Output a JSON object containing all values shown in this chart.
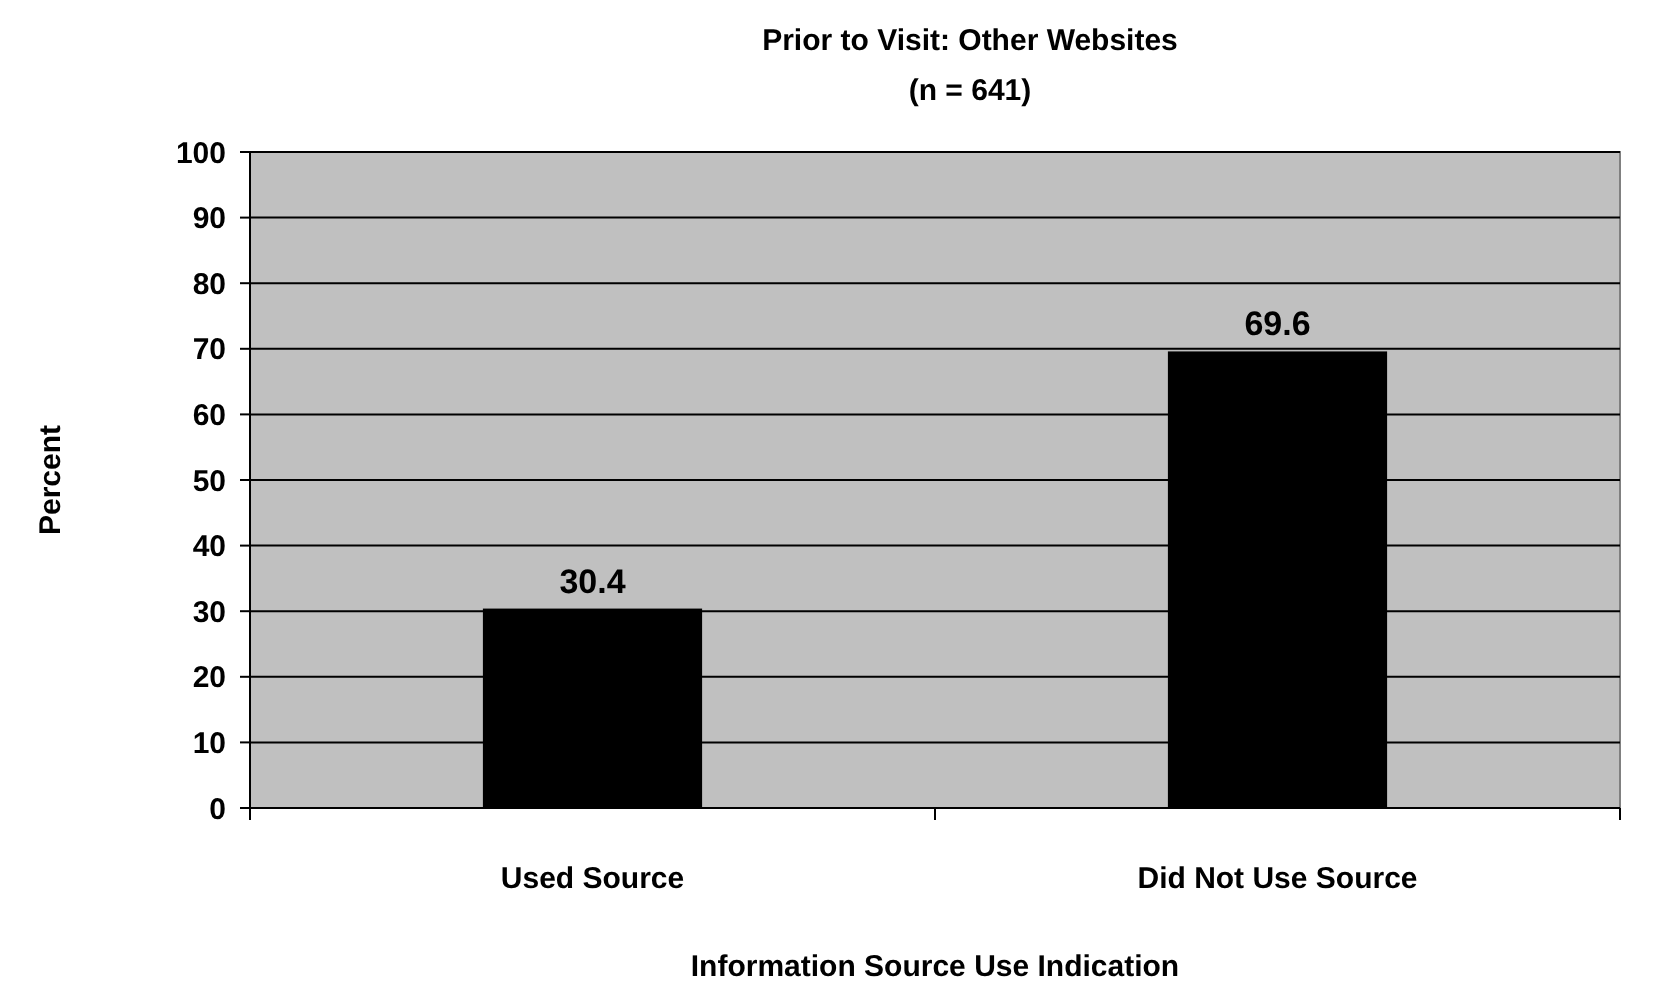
{
  "chart_data": {
    "type": "bar",
    "title": "Prior to Visit: Other Websites",
    "subtitle": "(n = 641)",
    "xlabel": "Information Source Use Indication",
    "ylabel": "Percent",
    "categories": [
      "Used Source",
      "Did Not Use Source"
    ],
    "values": [
      30.4,
      69.6
    ],
    "color": "#000000",
    "ylim": [
      0,
      100
    ],
    "yticks": [
      0,
      10,
      20,
      30,
      40,
      50,
      60,
      70,
      80,
      90,
      100
    ],
    "grid": "y",
    "data_labels": true
  }
}
